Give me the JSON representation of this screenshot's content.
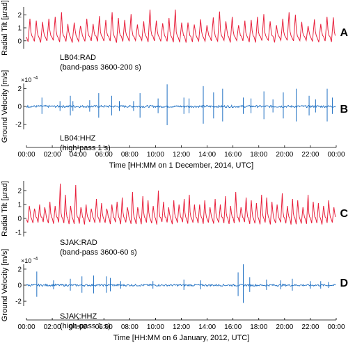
{
  "figure": {
    "x_ticks": [
      "00:00",
      "02:00",
      "04:00",
      "06:00",
      "08:00",
      "10:00",
      "12:00",
      "14:00",
      "16:00",
      "18:00",
      "20:00",
      "22:00",
      "00:00"
    ]
  },
  "chart_data": [
    {
      "panel": "A",
      "type": "line",
      "ylabel": "Radial Tilt [µrad]",
      "yticks": [
        "2",
        "1",
        "0"
      ],
      "ylim": [
        -0.6,
        2.6
      ],
      "station": "LB04:RAD",
      "filter": "(band-pass 3600-200 s)",
      "color": "#e8203c",
      "series": [
        {
          "baseline": 0.3,
          "peak_heights": [
            1.7,
            1.55,
            1.45,
            1.7,
            1.85,
            2.2,
            1.3,
            1.4,
            1.15,
            1.7,
            1.3,
            1.9,
            1.6,
            2.2,
            1.75,
            1.6,
            2.05,
            1.25,
            1.5,
            2.4,
            1.55,
            1.35,
            1.75,
            2.4,
            1.4,
            1.4,
            1.25,
            1.65,
            1.2,
            1.8,
            2.25,
            1.5,
            1.85,
            1.2,
            1.55,
            1.6,
            1.85,
            2.05,
            1.5,
            1.2,
            1.7,
            2.2,
            2.0,
            1.45,
            1.15,
            1.65,
            1.3,
            1.85,
            1.8
          ]
        }
      ]
    },
    {
      "panel": "B",
      "type": "line",
      "ylabel": "Ground Velocity [m/s]",
      "yticks": [
        "2",
        "0",
        "-2"
      ],
      "scale_label": "×10",
      "scale_exp": "-4",
      "ylim": [
        -2.6,
        2.6
      ],
      "station": "LB04:HHZ",
      "filter": "(high-pass 1 s)",
      "x_label": "Time [HH:MM on 1 December, 2014, UTC]",
      "color": "#1e6fc2",
      "spikes": [
        {
          "x": 1.2,
          "amp": 1.0
        },
        {
          "x": 2.6,
          "amp": 0.6
        },
        {
          "x": 3.4,
          "amp": 1.2
        },
        {
          "x": 3.6,
          "amp": 0.6
        },
        {
          "x": 4.9,
          "amp": 0.7
        },
        {
          "x": 5.6,
          "amp": 1.5
        },
        {
          "x": 6.6,
          "amp": 1.2
        },
        {
          "x": 7.2,
          "amp": 0.6
        },
        {
          "x": 8.3,
          "amp": 0.6
        },
        {
          "x": 8.8,
          "amp": 1.5
        },
        {
          "x": 10.2,
          "amp": 0.9
        },
        {
          "x": 10.9,
          "amp": 2.5
        },
        {
          "x": 12.2,
          "amp": 1.0
        },
        {
          "x": 12.6,
          "amp": 0.9
        },
        {
          "x": 13.7,
          "amp": 2.3
        },
        {
          "x": 14.5,
          "amp": 1.6
        },
        {
          "x": 15.2,
          "amp": 2.0
        },
        {
          "x": 16.8,
          "amp": 1.0
        },
        {
          "x": 17.4,
          "amp": 0.9
        },
        {
          "x": 18.4,
          "amp": 1.7
        },
        {
          "x": 19.1,
          "amp": 0.8
        },
        {
          "x": 19.9,
          "amp": 1.6
        },
        {
          "x": 20.9,
          "amp": 2.0
        },
        {
          "x": 21.9,
          "amp": 1.2
        },
        {
          "x": 22.4,
          "amp": 0.8
        },
        {
          "x": 23.3,
          "amp": 2.0
        },
        {
          "x": 23.7,
          "amp": 1.0
        }
      ]
    },
    {
      "panel": "C",
      "type": "line",
      "ylabel": "Radial Tilt [µrad]",
      "yticks": [
        "2",
        "1",
        "0",
        "-1"
      ],
      "ylim": [
        -1.3,
        2.7
      ],
      "station": "SJAK:RAD",
      "filter": "(band-pass 3600-60 s)",
      "color": "#e8203c",
      "series": [
        {
          "baseline": 0.0,
          "peak_heights": [
            0.9,
            0.7,
            1.0,
            0.8,
            1.2,
            0.9,
            2.5,
            1.7,
            0.9,
            2.4,
            0.8,
            1.0,
            0.7,
            1.4,
            1.1,
            0.7,
            1.0,
            1.2,
            1.5,
            0.8,
            1.9,
            0.8,
            1.6,
            1.3,
            0.9,
            2.0,
            1.2,
            0.8,
            1.3,
            1.0,
            1.4,
            1.7,
            1.0,
            1.0,
            1.3,
            0.8,
            1.4,
            1.0,
            1.6,
            0.9,
            1.9,
            0.8,
            1.5,
            1.3,
            1.1,
            1.7,
            1.5,
            1.2,
            1.0,
            1.8,
            0.9,
            1.4,
            1.3,
            0.8,
            1.7,
            1.2,
            1.1,
            0.9,
            1.3,
            0.8
          ]
        }
      ]
    },
    {
      "panel": "D",
      "type": "line",
      "ylabel": "Ground Velocity [m/s]",
      "yticks": [
        "2",
        "0",
        "-2"
      ],
      "scale_label": "×10",
      "scale_exp": "-4",
      "ylim": [
        -2.6,
        2.6
      ],
      "station": "SJAK:HHZ",
      "filter": "(high-pass 1 s)",
      "x_label": "Time [HH:MM on 6 January, 2012, UTC]",
      "color": "#1e6fc2",
      "spikes": [
        {
          "x": 0.8,
          "amp": 1.7
        },
        {
          "x": 2.1,
          "amp": 0.6
        },
        {
          "x": 3.4,
          "amp": 0.8
        },
        {
          "x": 4.3,
          "amp": 1.1
        },
        {
          "x": 5.2,
          "amp": 1.2
        },
        {
          "x": 6.2,
          "amp": 1.1
        },
        {
          "x": 6.5,
          "amp": 0.9
        },
        {
          "x": 7.3,
          "amp": 0.5
        },
        {
          "x": 9.8,
          "amp": 0.5
        },
        {
          "x": 12.2,
          "amp": 0.7
        },
        {
          "x": 13.5,
          "amp": 0.6
        },
        {
          "x": 16.4,
          "amp": 1.6
        },
        {
          "x": 16.8,
          "amp": 2.6
        },
        {
          "x": 17.3,
          "amp": 1.0
        },
        {
          "x": 18.6,
          "amp": 0.7
        },
        {
          "x": 19.7,
          "amp": 0.6
        },
        {
          "x": 20.6,
          "amp": 0.8
        },
        {
          "x": 22.0,
          "amp": 0.5
        },
        {
          "x": 22.8,
          "amp": 0.5
        },
        {
          "x": 23.4,
          "amp": 0.4
        }
      ]
    }
  ]
}
